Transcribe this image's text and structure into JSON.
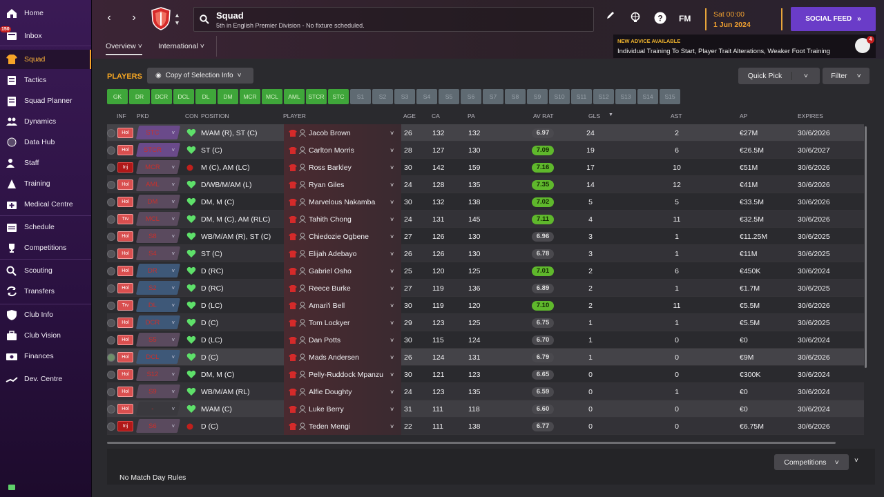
{
  "sidebar": {
    "inbox_badge": "150",
    "items": [
      {
        "label": "Home",
        "icon": "home-icon"
      },
      {
        "label": "Inbox",
        "icon": "inbox-icon"
      },
      {
        "label": "Squad",
        "icon": "squad-shirt-icon",
        "active": true
      },
      {
        "label": "Tactics",
        "icon": "tactics-board-icon"
      },
      {
        "label": "Squad Planner",
        "icon": "planner-clipboard-icon"
      },
      {
        "label": "Dynamics",
        "icon": "dynamics-people-icon"
      },
      {
        "label": "Data Hub",
        "icon": "data-hub-icon"
      },
      {
        "label": "Staff",
        "icon": "staff-icon"
      },
      {
        "label": "Training",
        "icon": "training-cone-icon"
      },
      {
        "label": "Medical Centre",
        "icon": "medical-kit-icon"
      },
      {
        "label": "Schedule",
        "icon": "calendar-icon"
      },
      {
        "label": "Competitions",
        "icon": "trophy-icon"
      },
      {
        "label": "Scouting",
        "icon": "magnifier-icon"
      },
      {
        "label": "Transfers",
        "icon": "transfer-arrows-icon"
      },
      {
        "label": "Club Info",
        "icon": "club-shield-icon"
      },
      {
        "label": "Club Vision",
        "icon": "briefcase-icon"
      },
      {
        "label": "Finances",
        "icon": "money-icon"
      },
      {
        "label": "Dev. Centre",
        "icon": "dev-centre-icon"
      }
    ]
  },
  "header": {
    "title": "Squad",
    "subtitle": "5th in English Premier Division - No fixture scheduled.",
    "fm_label": "FM",
    "date_day": "Sat 00:00",
    "date_date": "1 Jun 2024",
    "social_feed": "SOCIAL FEED",
    "tabs": [
      "Overview",
      "International"
    ],
    "advice_heading": "NEW ADVICE AVAILABLE",
    "advice_text": "Individual Training To Start, Player Trait Alterations, Weaker Foot Training",
    "advice_badge": "4"
  },
  "toolbar": {
    "players_label": "PLAYERS",
    "selection_info": "Copy of Selection Info",
    "quick_pick": "Quick Pick",
    "filter": "Filter"
  },
  "positions": [
    {
      "l": "GK",
      "on": true
    },
    {
      "l": "DR",
      "on": true
    },
    {
      "l": "DCR",
      "on": true
    },
    {
      "l": "DCL",
      "on": true
    },
    {
      "l": "DL",
      "on": true
    },
    {
      "l": "DM",
      "on": true
    },
    {
      "l": "MCR",
      "on": true
    },
    {
      "l": "MCL",
      "on": true
    },
    {
      "l": "AML",
      "on": true
    },
    {
      "l": "STCR",
      "on": true
    },
    {
      "l": "STC",
      "on": true
    },
    {
      "l": "S1",
      "on": false
    },
    {
      "l": "S2",
      "on": false
    },
    {
      "l": "S3",
      "on": false
    },
    {
      "l": "S4",
      "on": false
    },
    {
      "l": "S5",
      "on": false
    },
    {
      "l": "S6",
      "on": false
    },
    {
      "l": "S7",
      "on": false
    },
    {
      "l": "S8",
      "on": false
    },
    {
      "l": "S9",
      "on": false
    },
    {
      "l": "S10",
      "on": false
    },
    {
      "l": "S11",
      "on": false
    },
    {
      "l": "S12",
      "on": false
    },
    {
      "l": "S13",
      "on": false
    },
    {
      "l": "S14",
      "on": false
    },
    {
      "l": "S15",
      "on": false
    }
  ],
  "columns": {
    "inf": "INF",
    "pkd": "PKD",
    "con": "CON",
    "position": "POSITION",
    "player": "PLAYER",
    "age": "AGE",
    "ca": "CA",
    "pa": "PA",
    "av_rat": "AV RAT",
    "gls": "GLS",
    "ast": "AST",
    "ap": "AP",
    "expires": "EXPIRES"
  },
  "colors": {
    "accent": "#f5a623",
    "social": "#6a3cc8",
    "green_rating": "#5fb82c",
    "pos_on": "#3fa63a",
    "pos_off": "#5f6a72"
  },
  "players": [
    {
      "inf": "Hol",
      "pkd": "STC",
      "pkd_color": "#6a4a8a",
      "con": "heart",
      "position": "M/AM (R), ST (C)",
      "name": "Jacob Brown",
      "age": "26",
      "ca": "132",
      "pa": "132",
      "av": "6.97",
      "av_green": false,
      "gls": "24",
      "ast": "2",
      "ap": "€27M",
      "exp": "30/6/2026",
      "chk": false,
      "hl": true
    },
    {
      "inf": "Hol",
      "pkd": "STCR",
      "pkd_color": "#6a4a8a",
      "con": "heart",
      "position": "ST (C)",
      "name": "Carlton Morris",
      "age": "28",
      "ca": "127",
      "pa": "130",
      "av": "7.09",
      "av_green": true,
      "gls": "19",
      "ast": "6",
      "ap": "€26.5M",
      "exp": "30/6/2027",
      "chk": false
    },
    {
      "inf": "Inj",
      "pkd": "MCR",
      "pkd_color": "#5a4a5e",
      "con": "injury",
      "position": "M (C), AM (LC)",
      "name": "Ross Barkley",
      "age": "30",
      "ca": "142",
      "pa": "159",
      "av": "7.16",
      "av_green": true,
      "gls": "17",
      "ast": "10",
      "ap": "€51M",
      "exp": "30/6/2026",
      "chk": false
    },
    {
      "inf": "Hol",
      "pkd": "AML",
      "pkd_color": "#5a4a5e",
      "con": "heart",
      "position": "D/WB/M/AM (L)",
      "name": "Ryan Giles",
      "age": "24",
      "ca": "128",
      "pa": "135",
      "av": "7.35",
      "av_green": true,
      "gls": "14",
      "ast": "12",
      "ap": "€41M",
      "exp": "30/6/2026",
      "chk": false
    },
    {
      "inf": "Hol",
      "pkd": "DM",
      "pkd_color": "#5a4a5e",
      "con": "heart",
      "position": "DM, M (C)",
      "name": "Marvelous Nakamba",
      "age": "30",
      "ca": "132",
      "pa": "138",
      "av": "7.02",
      "av_green": true,
      "gls": "5",
      "ast": "5",
      "ap": "€33.5M",
      "exp": "30/6/2026",
      "chk": false
    },
    {
      "inf": "Trv",
      "pkd": "MCL",
      "pkd_color": "#5a4a5e",
      "con": "heart",
      "position": "DM, M (C), AM (RLC)",
      "name": "Tahith Chong",
      "age": "24",
      "ca": "131",
      "pa": "145",
      "av": "7.11",
      "av_green": true,
      "gls": "4",
      "ast": "11",
      "ap": "€32.5M",
      "exp": "30/6/2026",
      "chk": false
    },
    {
      "inf": "Hol",
      "pkd": "S8",
      "pkd_color": "#5a4a5e",
      "con": "heart",
      "position": "WB/M/AM (R), ST (C)",
      "name": "Chiedozie Ogbene",
      "age": "27",
      "ca": "126",
      "pa": "130",
      "av": "6.96",
      "av_green": false,
      "gls": "3",
      "ast": "1",
      "ap": "€11.25M",
      "exp": "30/6/2025",
      "chk": false
    },
    {
      "inf": "Hol",
      "pkd": "S4",
      "pkd_color": "#5a4a5e",
      "con": "heart",
      "position": "ST (C)",
      "name": "Elijah Adebayo",
      "age": "26",
      "ca": "126",
      "pa": "130",
      "av": "6.78",
      "av_green": false,
      "gls": "3",
      "ast": "1",
      "ap": "€11M",
      "exp": "30/6/2025",
      "chk": false
    },
    {
      "inf": "Hol",
      "pkd": "DR",
      "pkd_color": "#3e5878",
      "con": "heart",
      "position": "D (RC)",
      "name": "Gabriel Osho",
      "age": "25",
      "ca": "120",
      "pa": "125",
      "av": "7.01",
      "av_green": true,
      "gls": "2",
      "ast": "6",
      "ap": "€450K",
      "exp": "30/6/2024",
      "chk": false
    },
    {
      "inf": "Hol",
      "pkd": "S2",
      "pkd_color": "#3e5878",
      "con": "heart",
      "position": "D (RC)",
      "name": "Reece Burke",
      "age": "27",
      "ca": "119",
      "pa": "136",
      "av": "6.89",
      "av_green": false,
      "gls": "2",
      "ast": "1",
      "ap": "€1.7M",
      "exp": "30/6/2025",
      "chk": false
    },
    {
      "inf": "Trv",
      "pkd": "DL",
      "pkd_color": "#3e5878",
      "con": "heart",
      "position": "D (LC)",
      "name": "Amari'i Bell",
      "age": "30",
      "ca": "119",
      "pa": "120",
      "av": "7.10",
      "av_green": true,
      "gls": "2",
      "ast": "11",
      "ap": "€5.5M",
      "exp": "30/6/2026",
      "chk": false
    },
    {
      "inf": "Hol",
      "pkd": "DCR",
      "pkd_color": "#3e5878",
      "con": "heart",
      "position": "D (C)",
      "name": "Tom Lockyer",
      "age": "29",
      "ca": "123",
      "pa": "125",
      "av": "6.75",
      "av_green": false,
      "gls": "1",
      "ast": "1",
      "ap": "€5.5M",
      "exp": "30/6/2025",
      "chk": false
    },
    {
      "inf": "Hol",
      "pkd": "S5",
      "pkd_color": "#5a4a5e",
      "con": "heart",
      "position": "D (LC)",
      "name": "Dan Potts",
      "age": "30",
      "ca": "115",
      "pa": "124",
      "av": "6.70",
      "av_green": false,
      "gls": "1",
      "ast": "0",
      "ap": "€0",
      "exp": "30/6/2024",
      "chk": false
    },
    {
      "inf": "Hol",
      "pkd": "DCL",
      "pkd_color": "#3e5878",
      "con": "heart",
      "position": "D (C)",
      "name": "Mads Andersen",
      "age": "26",
      "ca": "124",
      "pa": "131",
      "av": "6.79",
      "av_green": false,
      "gls": "1",
      "ast": "0",
      "ap": "€9M",
      "exp": "30/6/2026",
      "chk": true,
      "hl": true
    },
    {
      "inf": "Hol",
      "pkd": "S12",
      "pkd_color": "#5a4a5e",
      "con": "heart",
      "position": "DM, M (C)",
      "name": "Pelly-Ruddock Mpanzu",
      "age": "30",
      "ca": "121",
      "pa": "123",
      "av": "6.65",
      "av_green": false,
      "gls": "0",
      "ast": "0",
      "ap": "€300K",
      "exp": "30/6/2024",
      "chk": false
    },
    {
      "inf": "Hol",
      "pkd": "S9",
      "pkd_color": "#5a4a5e",
      "con": "heart",
      "position": "WB/M/AM (RL)",
      "name": "Alfie Doughty",
      "age": "24",
      "ca": "123",
      "pa": "135",
      "av": "6.59",
      "av_green": false,
      "gls": "0",
      "ast": "1",
      "ap": "€0",
      "exp": "30/6/2024",
      "chk": false
    },
    {
      "inf": "Hol",
      "pkd": "-",
      "pkd_color": "#3a393e",
      "con": "heart",
      "position": "M/AM (C)",
      "name": "Luke Berry",
      "age": "31",
      "ca": "111",
      "pa": "118",
      "av": "6.60",
      "av_green": false,
      "gls": "0",
      "ast": "0",
      "ap": "€0",
      "exp": "30/6/2024",
      "chk": false,
      "hl2": true
    },
    {
      "inf": "Inj",
      "pkd": "S6",
      "pkd_color": "#5a4a5e",
      "con": "injury",
      "position": "D (C)",
      "name": "Teden Mengi",
      "age": "22",
      "ca": "111",
      "pa": "138",
      "av": "6.77",
      "av_green": false,
      "gls": "0",
      "ast": "0",
      "ap": "€6.75M",
      "exp": "30/6/2026",
      "chk": false
    }
  ],
  "footer": {
    "competitions": "Competitions",
    "no_rules": "No Match Day Rules"
  }
}
